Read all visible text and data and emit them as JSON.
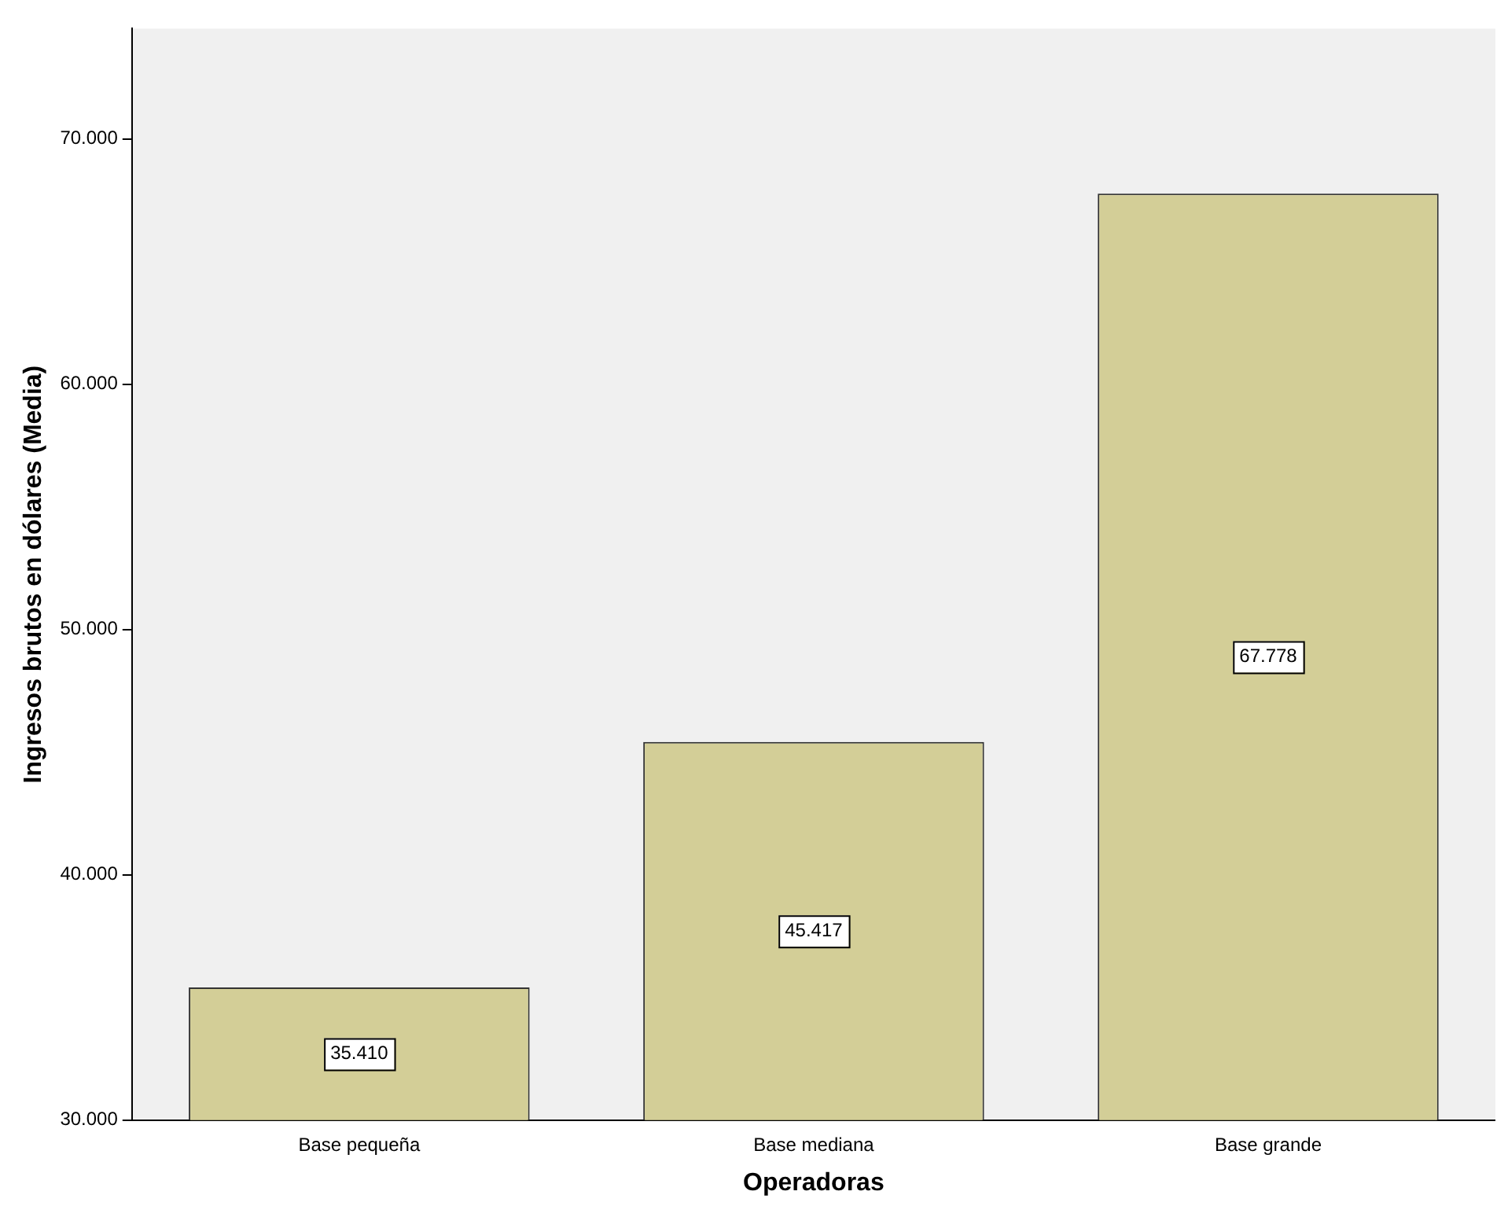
{
  "chart_data": {
    "type": "bar",
    "xlabel": "Operadoras",
    "ylabel": "Ingresos brutos en dólares (Media)",
    "categories": [
      "Base pequeña",
      "Base mediana",
      "Base grande"
    ],
    "values": [
      35410,
      45417,
      67778
    ],
    "value_labels": [
      "35.410",
      "45.417",
      "67.778"
    ],
    "color": "#d3ce97",
    "ylim": [
      30000,
      74500
    ],
    "yticks": [
      {
        "value": 30000,
        "label": "30.000"
      },
      {
        "value": 40000,
        "label": "40.000"
      },
      {
        "value": 50000,
        "label": "50.000"
      },
      {
        "value": 60000,
        "label": "60.000"
      },
      {
        "value": 70000,
        "label": "70.000"
      }
    ],
    "grid": false,
    "legend": false
  }
}
